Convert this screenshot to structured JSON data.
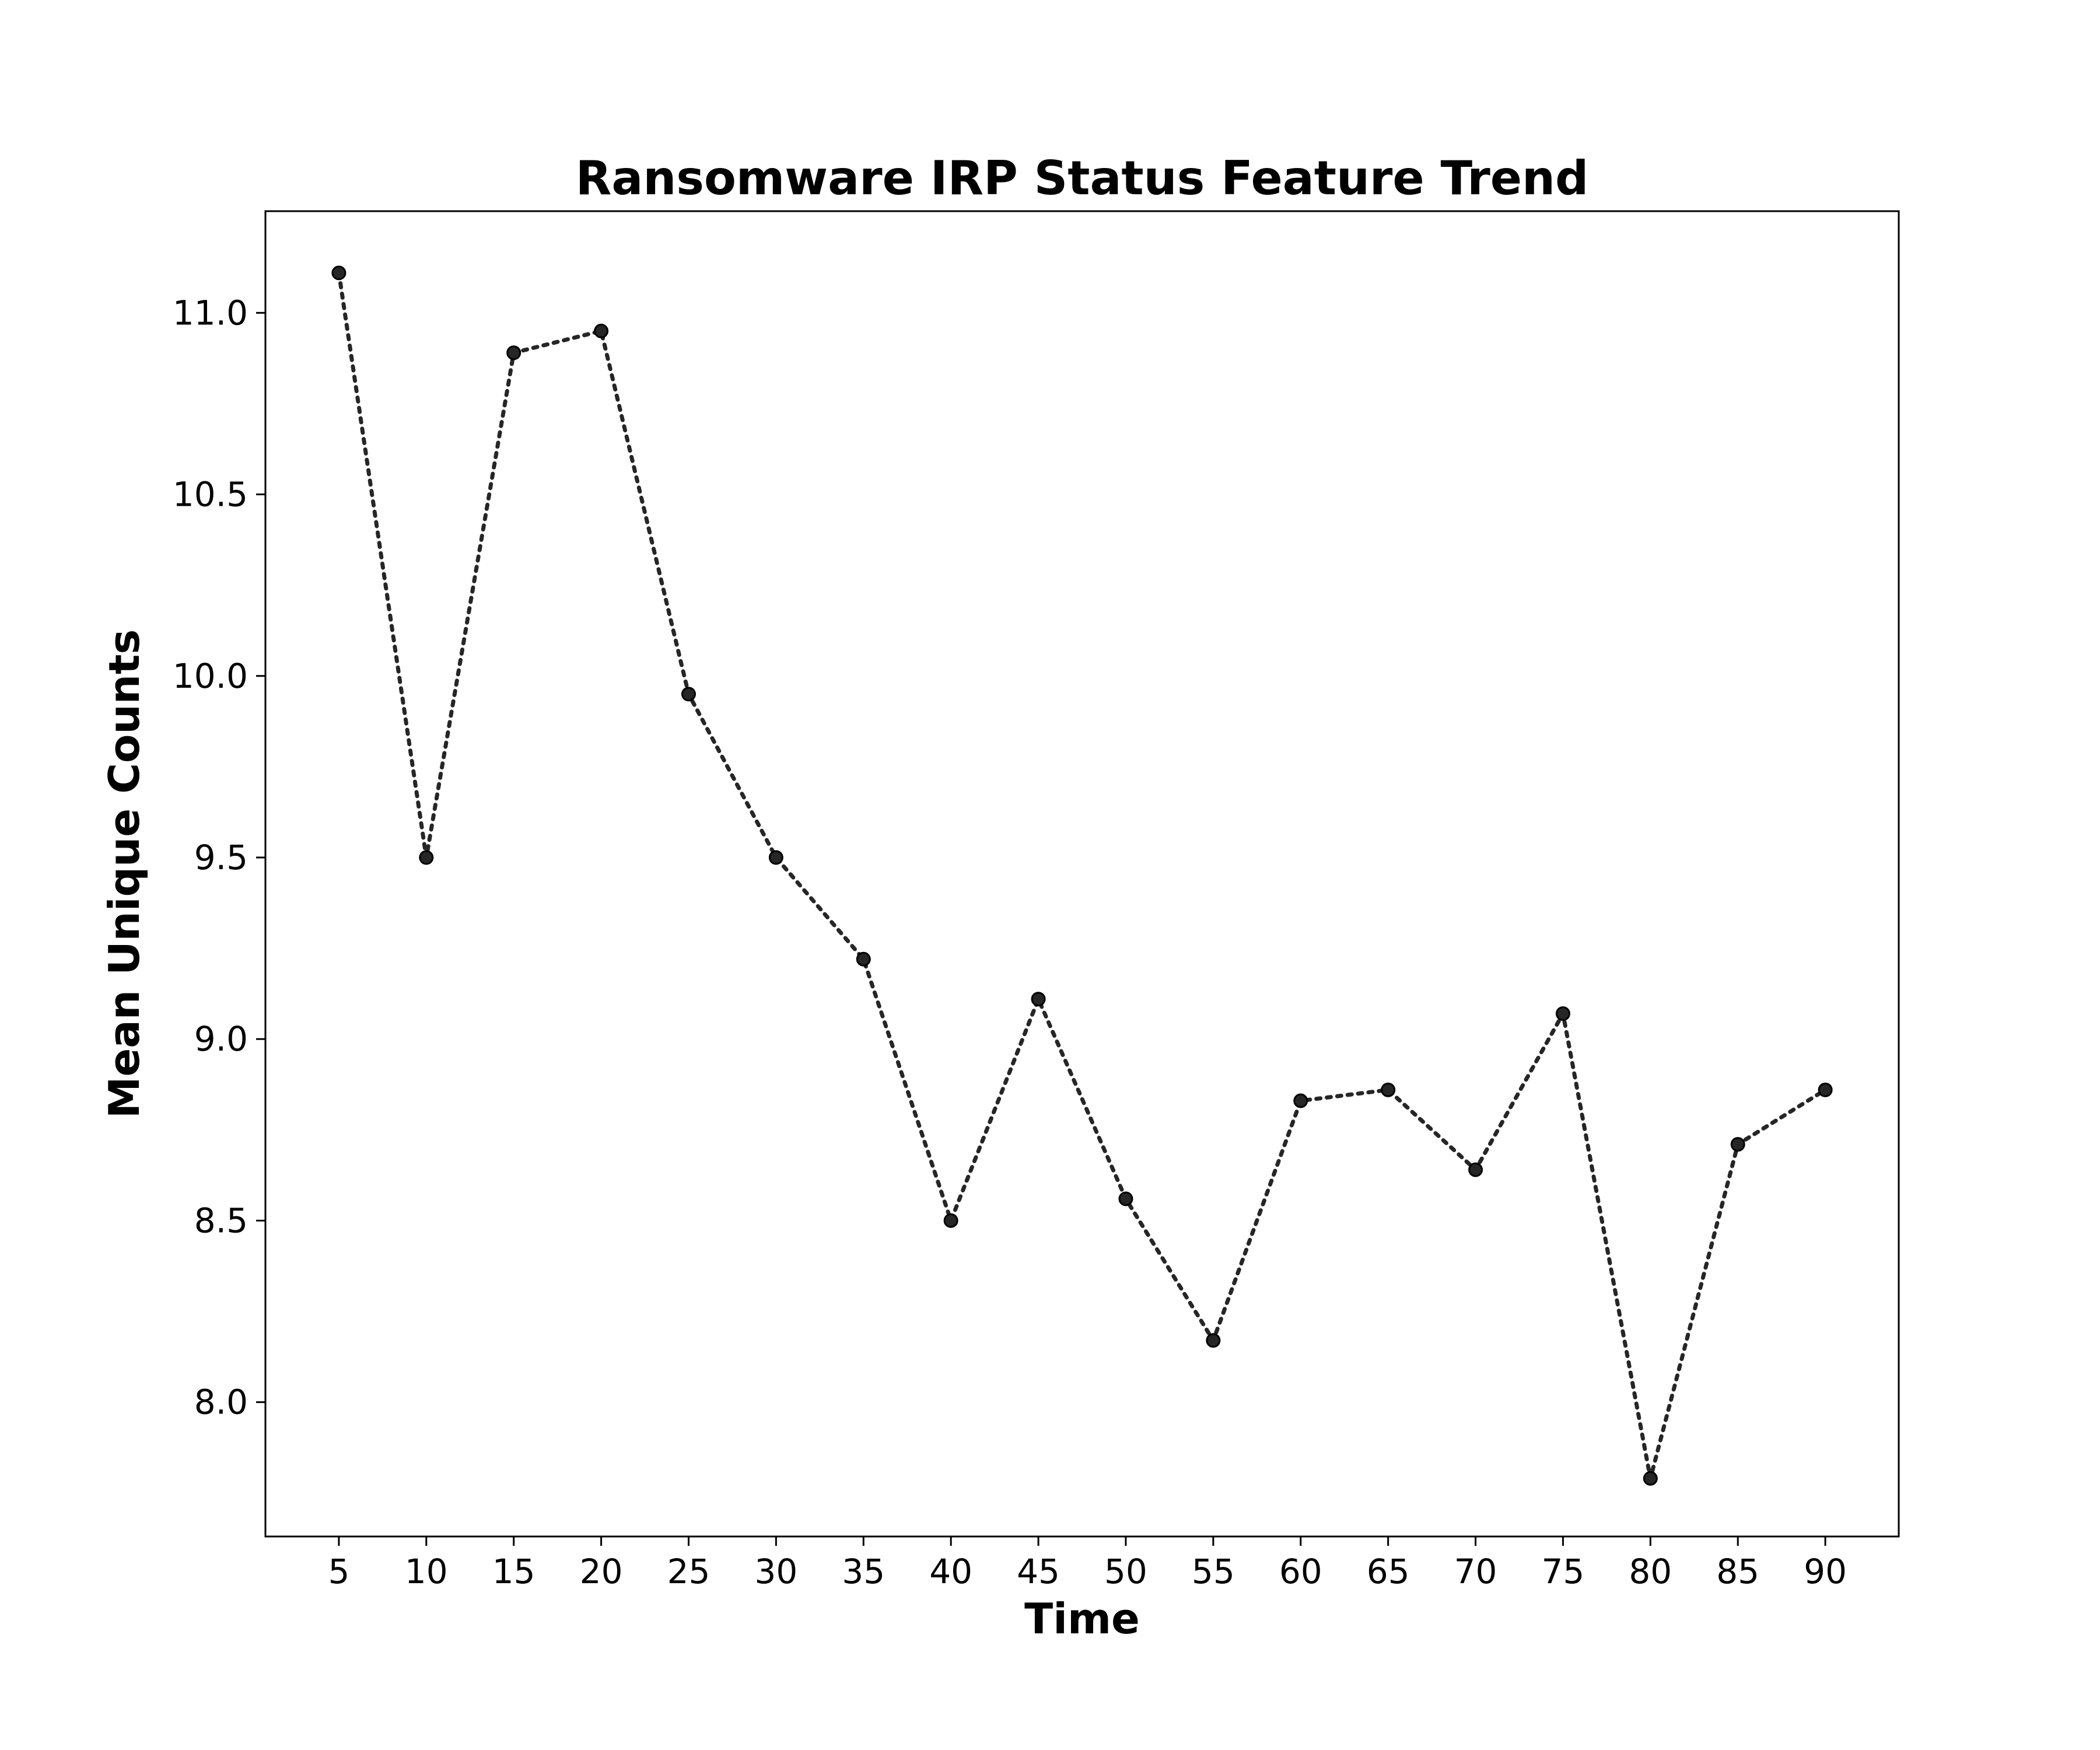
{
  "chart_data": {
    "type": "line",
    "title": "Ransomware IRP Status Feature Trend",
    "xlabel": "Time",
    "ylabel": "Mean Unique Counts",
    "x": [
      5,
      10,
      15,
      20,
      25,
      30,
      35,
      40,
      45,
      50,
      55,
      60,
      65,
      70,
      75,
      80,
      85,
      90
    ],
    "series": [
      {
        "values": [
          11.11,
          9.5,
          10.89,
          10.95,
          9.95,
          9.5,
          9.22,
          8.5,
          9.11,
          8.56,
          8.17,
          8.83,
          8.86,
          8.64,
          9.07,
          7.79,
          8.71,
          8.86
        ]
      }
    ],
    "xticks": [
      "5",
      "10",
      "15",
      "20",
      "25",
      "30",
      "35",
      "40",
      "45",
      "50",
      "55",
      "60",
      "65",
      "70",
      "75",
      "80",
      "85",
      "90"
    ],
    "yticks": [
      "8.0",
      "8.5",
      "9.0",
      "9.5",
      "10.0",
      "10.5",
      "11.0"
    ],
    "xlim": [
      0.8,
      94.2
    ],
    "ylim": [
      7.63,
      11.28
    ],
    "grid": false,
    "line_style": "dotted",
    "line_color": "#262626",
    "marker": "circle"
  }
}
